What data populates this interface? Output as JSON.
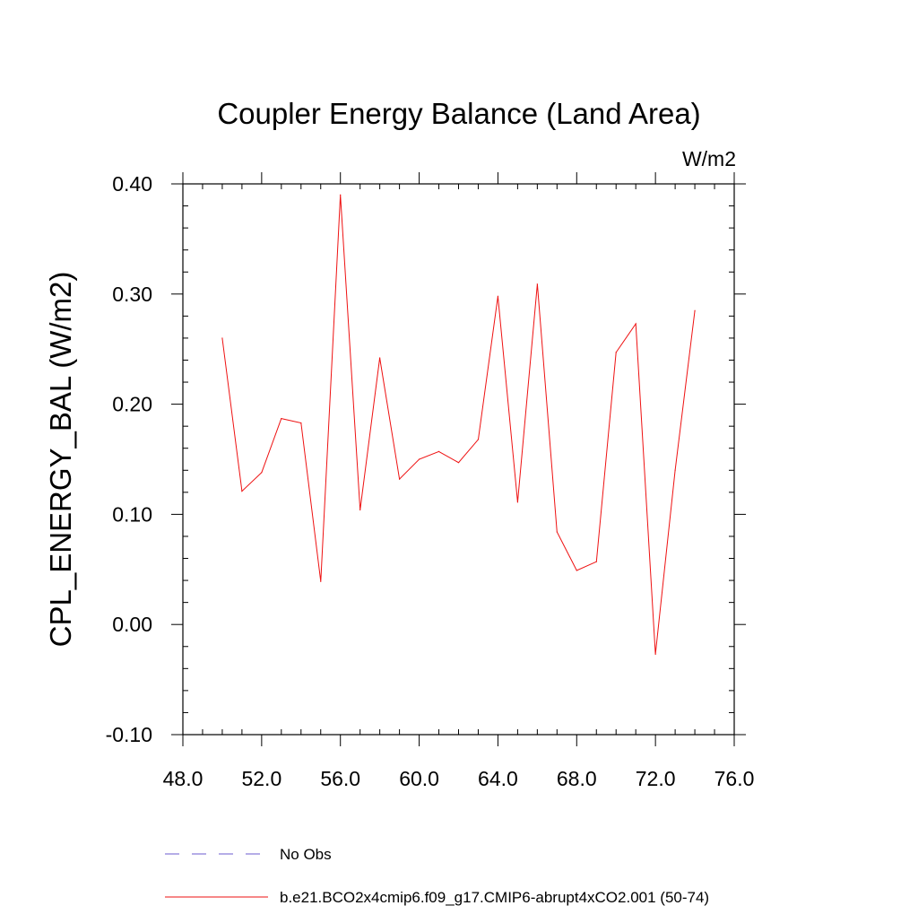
{
  "chart_data": {
    "type": "line",
    "title": "Coupler Energy Balance (Land Area)",
    "units_label": "W/m2",
    "xlabel": "",
    "ylabel": "CPL_ENERGY_BAL  (W/m2)",
    "xlim": [
      48,
      76
    ],
    "ylim": [
      -0.1,
      0.4
    ],
    "x_ticks": [
      48,
      52,
      56,
      60,
      64,
      68,
      72,
      76
    ],
    "x_tick_labels": [
      "48.0",
      "52.0",
      "56.0",
      "60.0",
      "64.0",
      "68.0",
      "72.0",
      "76.0"
    ],
    "x_minor_step": 1,
    "y_ticks": [
      -0.1,
      0.0,
      0.1,
      0.2,
      0.3,
      0.4
    ],
    "y_tick_labels": [
      "-0.10",
      "0.00",
      "0.10",
      "0.20",
      "0.30",
      "0.40"
    ],
    "y_minor_step": 0.02,
    "grid": false,
    "legend_position": "bottom",
    "series": [
      {
        "name": "No Obs",
        "color": "#6b5bcf",
        "dashed": true,
        "x": [],
        "values": []
      },
      {
        "name": "b.e21.BCO2x4cmip6.f09_g17.CMIP6-abrupt4xCO2.001 (50-74)",
        "color": "#ee1111",
        "dashed": false,
        "x": [
          50,
          51,
          52,
          53,
          54,
          55,
          56,
          57,
          58,
          59,
          60,
          61,
          62,
          63,
          64,
          65,
          66,
          67,
          68,
          69,
          70,
          71,
          72,
          73,
          74
        ],
        "values": [
          0.26,
          0.121,
          0.138,
          0.187,
          0.183,
          0.039,
          0.39,
          0.104,
          0.242,
          0.132,
          0.15,
          0.157,
          0.147,
          0.168,
          0.298,
          0.111,
          0.309,
          0.084,
          0.049,
          0.057,
          0.247,
          0.273,
          -0.027,
          0.14,
          0.285
        ]
      }
    ]
  }
}
